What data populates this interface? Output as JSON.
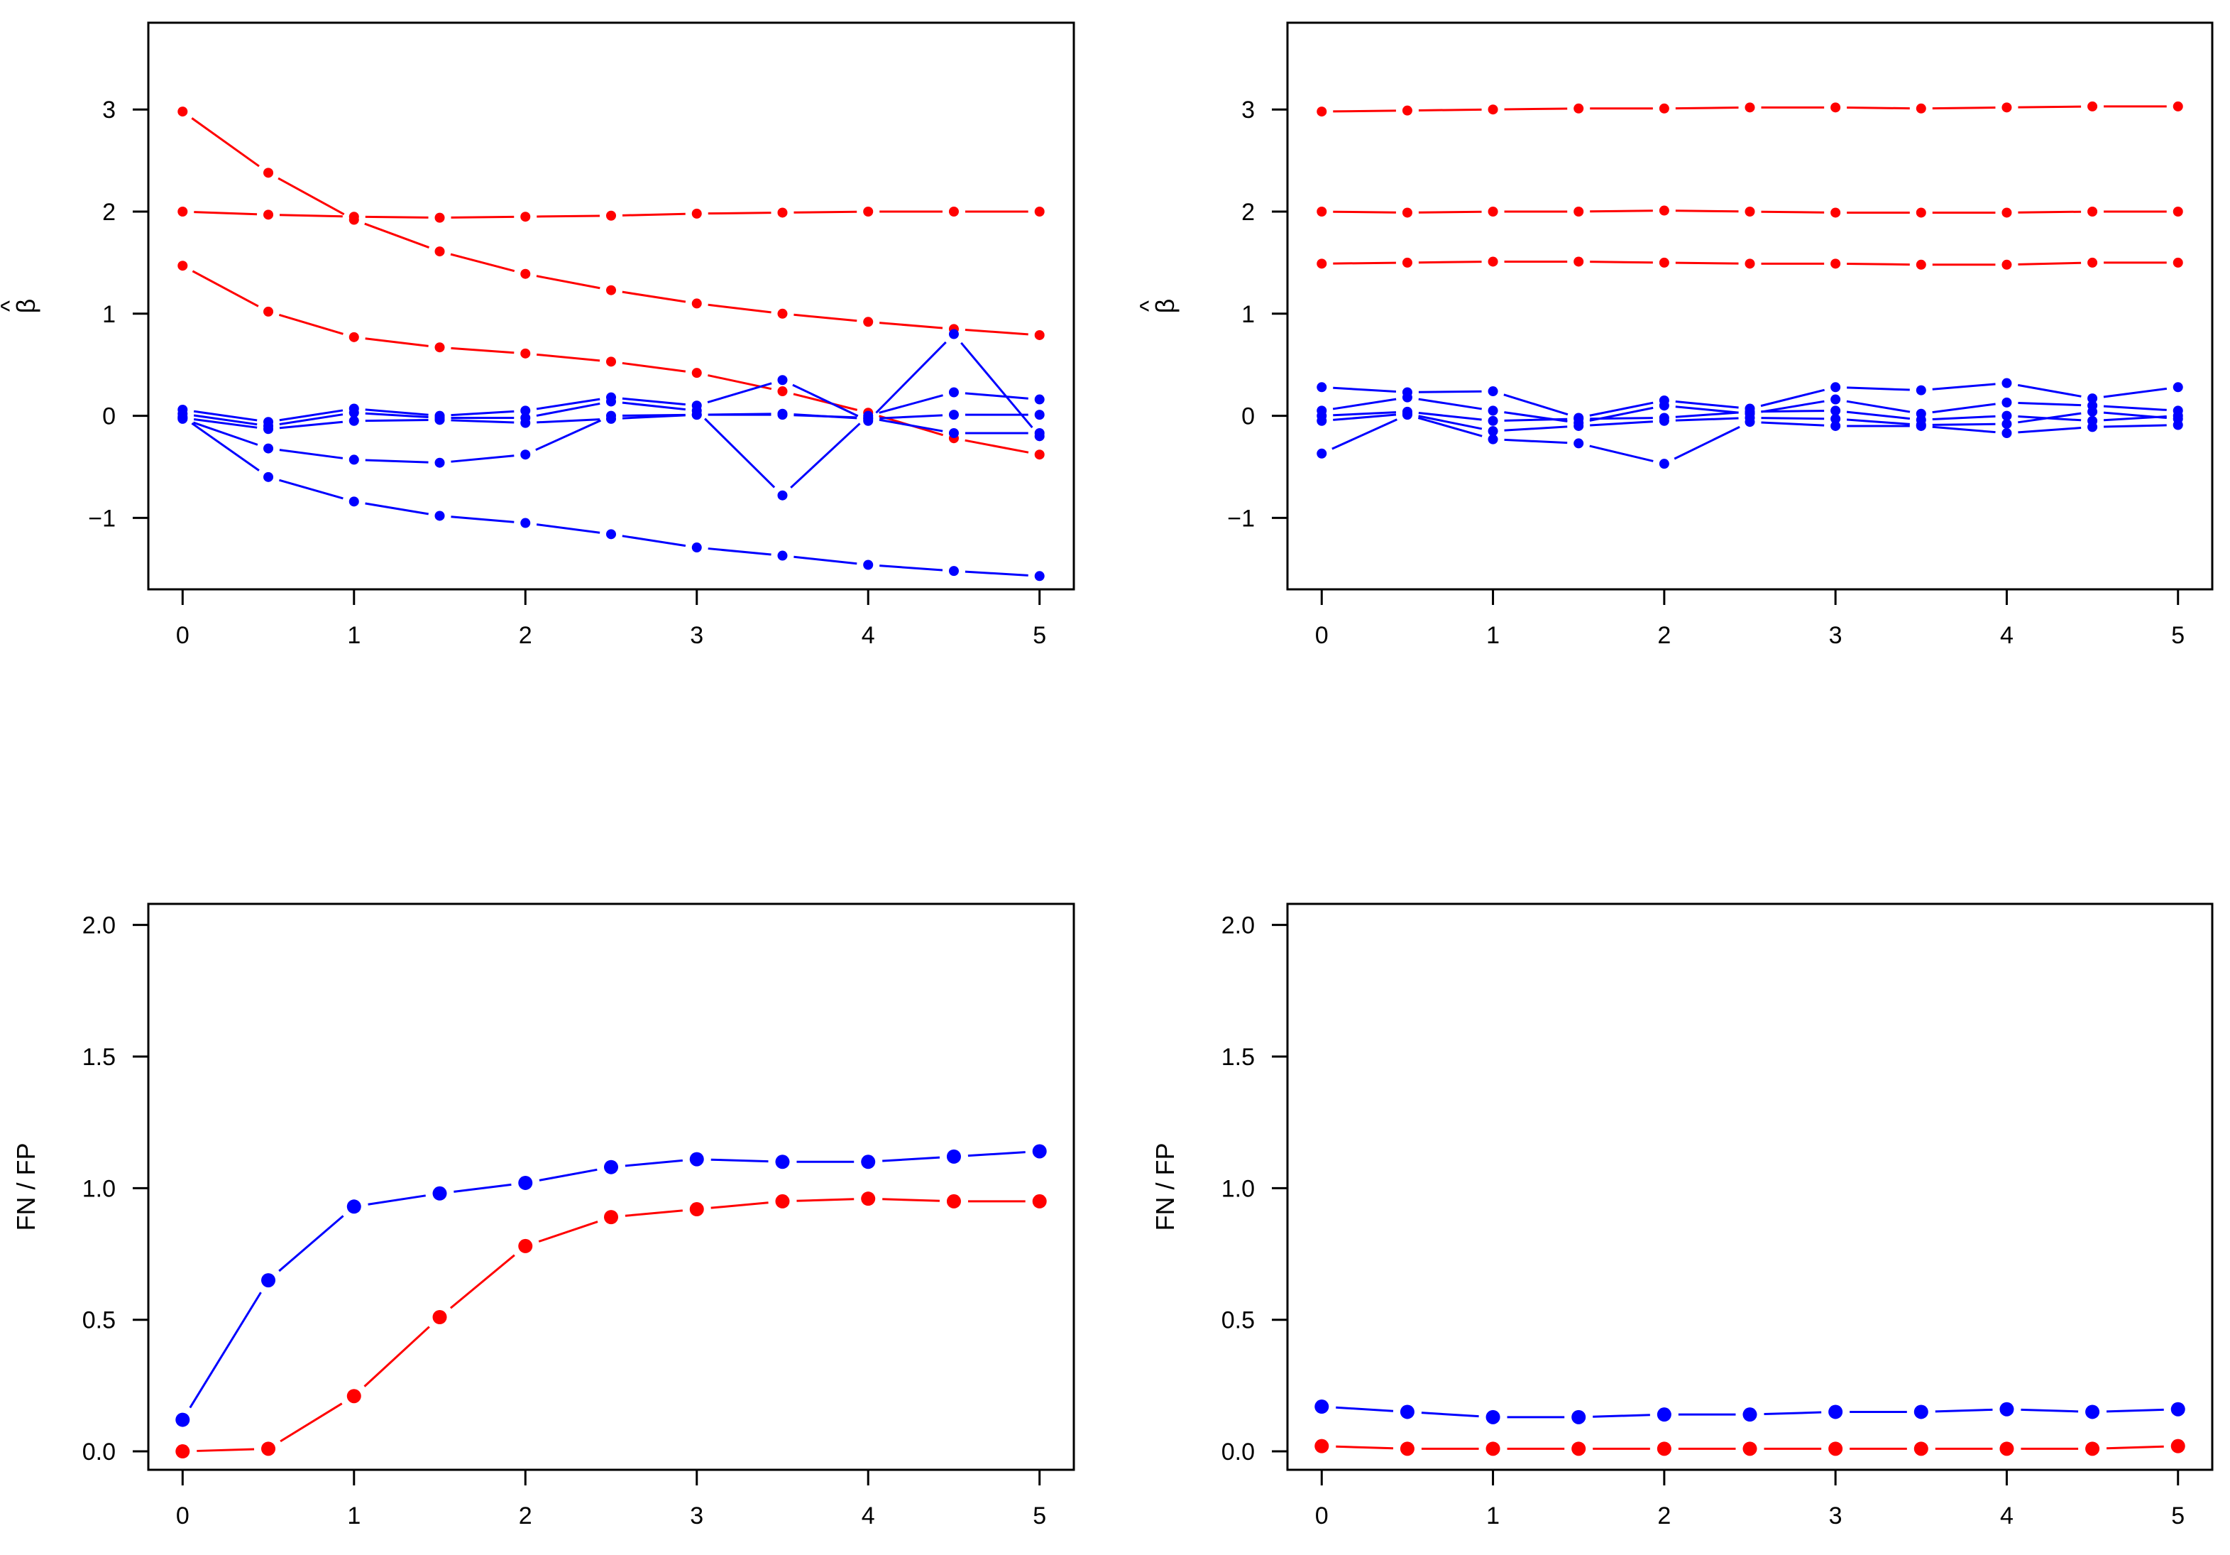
{
  "colors": {
    "red": "#ff0000",
    "blue": "#0000ff",
    "axis": "#000000"
  },
  "chart_data": [
    {
      "id": "top-left",
      "type": "line",
      "title": "",
      "xlabel": "",
      "ylabel": "β",
      "ylabel_hat": "^",
      "xlim": [
        0,
        5
      ],
      "ylim": [
        -1.7,
        3.85
      ],
      "xticks": [
        0,
        1,
        2,
        3,
        4,
        5
      ],
      "xtick_labels": [
        "0",
        "1",
        "2",
        "3",
        "4",
        "5"
      ],
      "yticks": [
        -1,
        0,
        1,
        2,
        3
      ],
      "ytick_labels": [
        "−1",
        "0",
        "1",
        "2",
        "3"
      ],
      "grid": false,
      "marker": "small",
      "x": [
        0,
        0.5,
        1,
        1.5,
        2,
        2.5,
        3,
        3.5,
        4,
        4.5,
        5
      ],
      "series": [
        {
          "name": "red-1",
          "color": "red",
          "values": [
            2.98,
            2.38,
            1.92,
            1.61,
            1.39,
            1.23,
            1.1,
            1.0,
            0.92,
            0.85,
            0.79
          ]
        },
        {
          "name": "red-2",
          "color": "red",
          "values": [
            2.0,
            1.97,
            1.95,
            1.94,
            1.95,
            1.96,
            1.98,
            1.99,
            2.0,
            2.0,
            2.0
          ]
        },
        {
          "name": "red-3",
          "color": "red",
          "values": [
            1.47,
            1.02,
            0.77,
            0.67,
            0.61,
            0.53,
            0.42,
            0.24,
            0.03,
            -0.22,
            -0.38
          ]
        },
        {
          "name": "blue-1",
          "color": "blue",
          "values": [
            0.06,
            -0.06,
            0.07,
            0.0,
            0.05,
            0.18,
            0.1,
            0.35,
            -0.05,
            0.8,
            -0.2
          ]
        },
        {
          "name": "blue-2",
          "color": "blue",
          "values": [
            0.02,
            -0.1,
            0.03,
            -0.02,
            -0.02,
            0.14,
            0.05,
            -0.78,
            0.0,
            0.23,
            0.16
          ]
        },
        {
          "name": "blue-3",
          "color": "blue",
          "values": [
            -0.02,
            -0.13,
            -0.05,
            -0.04,
            -0.07,
            -0.03,
            0.01,
            0.02,
            -0.03,
            0.01,
            0.01
          ]
        },
        {
          "name": "blue-4",
          "color": "blue",
          "values": [
            -0.03,
            -0.32,
            -0.43,
            -0.46,
            -0.38,
            0.0,
            0.01,
            0.01,
            -0.02,
            -0.17,
            -0.17
          ]
        },
        {
          "name": "blue-5",
          "color": "blue",
          "values": [
            -0.01,
            -0.6,
            -0.84,
            -0.98,
            -1.05,
            -1.16,
            -1.29,
            -1.37,
            -1.46,
            -1.52,
            -1.57
          ]
        }
      ]
    },
    {
      "id": "top-right",
      "type": "line",
      "title": "",
      "xlabel": "",
      "ylabel": "β",
      "ylabel_hat": "^",
      "xlim": [
        0,
        5
      ],
      "ylim": [
        -1.7,
        3.85
      ],
      "xticks": [
        0,
        1,
        2,
        3,
        4,
        5
      ],
      "xtick_labels": [
        "0",
        "1",
        "2",
        "3",
        "4",
        "5"
      ],
      "yticks": [
        -1,
        0,
        1,
        2,
        3
      ],
      "ytick_labels": [
        "−1",
        "0",
        "1",
        "2",
        "3"
      ],
      "grid": false,
      "marker": "small",
      "x": [
        0,
        0.5,
        1,
        1.5,
        2,
        2.5,
        3,
        3.5,
        4,
        4.5,
        5
      ],
      "series": [
        {
          "name": "red-1",
          "color": "red",
          "values": [
            2.98,
            2.99,
            3.0,
            3.01,
            3.01,
            3.02,
            3.02,
            3.01,
            3.02,
            3.03,
            3.03
          ]
        },
        {
          "name": "red-2",
          "color": "red",
          "values": [
            2.0,
            1.99,
            2.0,
            2.0,
            2.01,
            2.0,
            1.99,
            1.99,
            1.99,
            2.0,
            2.0
          ]
        },
        {
          "name": "red-3",
          "color": "red",
          "values": [
            1.49,
            1.5,
            1.51,
            1.51,
            1.5,
            1.49,
            1.49,
            1.48,
            1.48,
            1.5,
            1.5
          ]
        },
        {
          "name": "blue-1",
          "color": "blue",
          "values": [
            0.28,
            0.23,
            0.24,
            -0.02,
            0.15,
            0.07,
            0.28,
            0.25,
            0.32,
            0.17,
            0.28
          ]
        },
        {
          "name": "blue-2",
          "color": "blue",
          "values": [
            0.05,
            0.18,
            0.05,
            -0.07,
            0.1,
            0.02,
            0.16,
            0.02,
            0.13,
            0.1,
            0.05
          ]
        },
        {
          "name": "blue-3",
          "color": "blue",
          "values": [
            0.0,
            0.04,
            -0.05,
            -0.03,
            -0.02,
            0.04,
            0.05,
            -0.04,
            0.0,
            -0.05,
            0.0
          ]
        },
        {
          "name": "blue-4",
          "color": "blue",
          "values": [
            -0.05,
            0.02,
            -0.15,
            -0.1,
            -0.05,
            -0.02,
            -0.03,
            -0.09,
            -0.08,
            0.04,
            -0.03
          ]
        },
        {
          "name": "blue-5",
          "color": "blue",
          "values": [
            -0.37,
            0.01,
            -0.23,
            -0.27,
            -0.47,
            -0.06,
            -0.1,
            -0.1,
            -0.17,
            -0.11,
            -0.09
          ]
        }
      ]
    },
    {
      "id": "bottom-left",
      "type": "line",
      "title": "",
      "xlabel": "",
      "ylabel": "FN / FP",
      "xlim": [
        0,
        5
      ],
      "ylim": [
        -0.07,
        2.08
      ],
      "xticks": [
        0,
        1,
        2,
        3,
        4,
        5
      ],
      "xtick_labels": [
        "0",
        "1",
        "2",
        "3",
        "4",
        "5"
      ],
      "yticks": [
        0.0,
        0.5,
        1.0,
        1.5,
        2.0
      ],
      "ytick_labels": [
        "0.0",
        "0.5",
        "1.0",
        "1.5",
        "2.0"
      ],
      "grid": false,
      "marker": "large",
      "x": [
        0,
        0.5,
        1,
        1.5,
        2,
        2.5,
        3,
        3.5,
        4,
        4.5,
        5
      ],
      "series": [
        {
          "name": "blue",
          "color": "blue",
          "values": [
            0.12,
            0.65,
            0.93,
            0.98,
            1.02,
            1.08,
            1.11,
            1.1,
            1.1,
            1.12,
            1.14
          ]
        },
        {
          "name": "red",
          "color": "red",
          "values": [
            0.0,
            0.01,
            0.21,
            0.51,
            0.78,
            0.89,
            0.92,
            0.95,
            0.96,
            0.95,
            0.95
          ]
        }
      ]
    },
    {
      "id": "bottom-right",
      "type": "line",
      "title": "",
      "xlabel": "",
      "ylabel": "FN / FP",
      "xlim": [
        0,
        5
      ],
      "ylim": [
        -0.07,
        2.08
      ],
      "xticks": [
        0,
        1,
        2,
        3,
        4,
        5
      ],
      "xtick_labels": [
        "0",
        "1",
        "2",
        "3",
        "4",
        "5"
      ],
      "yticks": [
        0.0,
        0.5,
        1.0,
        1.5,
        2.0
      ],
      "ytick_labels": [
        "0.0",
        "0.5",
        "1.0",
        "1.5",
        "2.0"
      ],
      "grid": false,
      "marker": "large",
      "x": [
        0,
        0.5,
        1,
        1.5,
        2,
        2.5,
        3,
        3.5,
        4,
        4.5,
        5
      ],
      "series": [
        {
          "name": "blue",
          "color": "blue",
          "values": [
            0.17,
            0.15,
            0.13,
            0.13,
            0.14,
            0.14,
            0.15,
            0.15,
            0.16,
            0.15,
            0.16
          ]
        },
        {
          "name": "red",
          "color": "red",
          "values": [
            0.02,
            0.01,
            0.01,
            0.01,
            0.01,
            0.01,
            0.01,
            0.01,
            0.01,
            0.01,
            0.02
          ]
        }
      ]
    }
  ]
}
